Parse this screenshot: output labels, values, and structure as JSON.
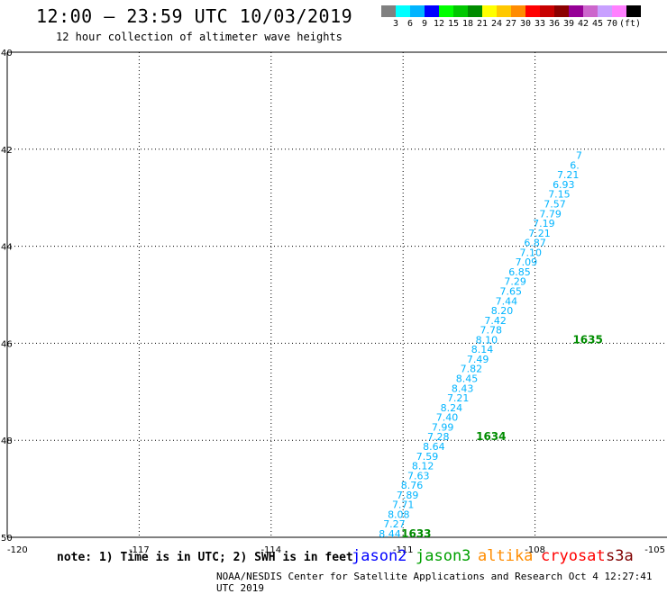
{
  "header": {
    "title": "12:00 – 23:59 UTC 10/03/2019",
    "subtitle": "12 hour collection of altimeter wave heights"
  },
  "legend": {
    "colors": [
      "#808080",
      "#00ffff",
      "#00b4ff",
      "#0000ff",
      "#00ff00",
      "#00c800",
      "#008c00",
      "#ffff00",
      "#ffc800",
      "#ff8c00",
      "#ff0000",
      "#c80000",
      "#8c0000",
      "#960096",
      "#cc66cc",
      "#c8a0ff",
      "#ff80ff",
      "#000000"
    ],
    "labels": [
      "3",
      "6",
      "9",
      "12",
      "15",
      "18",
      "21",
      "24",
      "27",
      "30",
      "33",
      "36",
      "39",
      "42",
      "45",
      "70",
      "(ft)"
    ]
  },
  "chart_data": {
    "type": "scatter",
    "xlim": [
      -120,
      -105
    ],
    "ylim": [
      40,
      50
    ],
    "x_ticks": [
      "-120",
      "-117",
      "-114",
      "-111",
      "-108",
      "-105"
    ],
    "y_ticks": [
      "40",
      "42",
      "44",
      "46",
      "48",
      "50"
    ],
    "grid": true,
    "label_color": "#00b4ff",
    "time_color": "#008c00",
    "wave_heights": [
      {
        "lon": -111.3,
        "lat": 50.0,
        "value": "8.44"
      },
      {
        "lon": -111.2,
        "lat": 49.8,
        "value": "7.27"
      },
      {
        "lon": -111.1,
        "lat": 49.6,
        "value": "8.08"
      },
      {
        "lon": -111.0,
        "lat": 49.4,
        "value": "7.71"
      },
      {
        "lon": -110.9,
        "lat": 49.2,
        "value": "7.89"
      },
      {
        "lon": -110.8,
        "lat": 49.0,
        "value": "8.76"
      },
      {
        "lon": -110.65,
        "lat": 48.8,
        "value": "7.63"
      },
      {
        "lon": -110.55,
        "lat": 48.6,
        "value": "8.12"
      },
      {
        "lon": -110.45,
        "lat": 48.4,
        "value": "7.59"
      },
      {
        "lon": -110.3,
        "lat": 48.2,
        "value": "8.64"
      },
      {
        "lon": -110.2,
        "lat": 48.0,
        "value": "7.28"
      },
      {
        "lon": -110.1,
        "lat": 47.8,
        "value": "7.99"
      },
      {
        "lon": -110.0,
        "lat": 47.6,
        "value": "7.40"
      },
      {
        "lon": -109.9,
        "lat": 47.4,
        "value": "8.24"
      },
      {
        "lon": -109.75,
        "lat": 47.2,
        "value": "7.21"
      },
      {
        "lon": -109.65,
        "lat": 47.0,
        "value": "8.43"
      },
      {
        "lon": -109.55,
        "lat": 46.8,
        "value": "8.45"
      },
      {
        "lon": -109.45,
        "lat": 46.6,
        "value": "7.82"
      },
      {
        "lon": -109.3,
        "lat": 46.4,
        "value": "7.49"
      },
      {
        "lon": -109.2,
        "lat": 46.2,
        "value": "8.14"
      },
      {
        "lon": -109.1,
        "lat": 46.0,
        "value": "8.10"
      },
      {
        "lon": -109.0,
        "lat": 45.8,
        "value": "7.78"
      },
      {
        "lon": -108.9,
        "lat": 45.6,
        "value": "7.42"
      },
      {
        "lon": -108.75,
        "lat": 45.4,
        "value": "8.20"
      },
      {
        "lon": -108.65,
        "lat": 45.2,
        "value": "7.44"
      },
      {
        "lon": -108.55,
        "lat": 45.0,
        "value": "7.65"
      },
      {
        "lon": -108.45,
        "lat": 44.8,
        "value": "7.29"
      },
      {
        "lon": -108.35,
        "lat": 44.6,
        "value": "6.85"
      },
      {
        "lon": -108.2,
        "lat": 44.4,
        "value": "7.09"
      },
      {
        "lon": -108.1,
        "lat": 44.2,
        "value": "7.10"
      },
      {
        "lon": -108.0,
        "lat": 44.0,
        "value": "6.87"
      },
      {
        "lon": -107.9,
        "lat": 43.8,
        "value": "7.21"
      },
      {
        "lon": -107.8,
        "lat": 43.6,
        "value": "7.19"
      },
      {
        "lon": -107.65,
        "lat": 43.4,
        "value": "7.79"
      },
      {
        "lon": -107.55,
        "lat": 43.2,
        "value": "7.57"
      },
      {
        "lon": -107.45,
        "lat": 43.0,
        "value": "7.15"
      },
      {
        "lon": -107.35,
        "lat": 42.8,
        "value": "6.93"
      },
      {
        "lon": -107.25,
        "lat": 42.6,
        "value": "7.21"
      },
      {
        "lon": -107.1,
        "lat": 42.4,
        "value": "6."
      },
      {
        "lon": -107.0,
        "lat": 42.2,
        "value": "7"
      }
    ],
    "time_labels": [
      {
        "lon": -110.7,
        "lat": 50.0,
        "value": "1633"
      },
      {
        "lon": -109.0,
        "lat": 48.0,
        "value": "1634"
      },
      {
        "lon": -106.8,
        "lat": 46.0,
        "value": "1635"
      }
    ]
  },
  "note": "note: 1) Time is in UTC; 2) SWH is in feet",
  "satellites": [
    {
      "name": "jason2",
      "color": "#0000ff"
    },
    {
      "name": "jason3",
      "color": "#00a000"
    },
    {
      "name": "altika",
      "color": "#ff8c00"
    },
    {
      "name": "cryosat",
      "color": "#ff0000"
    },
    {
      "name": "s3a",
      "color": "#800000"
    }
  ],
  "footer": "NOAA/NESDIS Center for Satellite Applications and Research   Oct  4 12:27:41 UTC 2019"
}
